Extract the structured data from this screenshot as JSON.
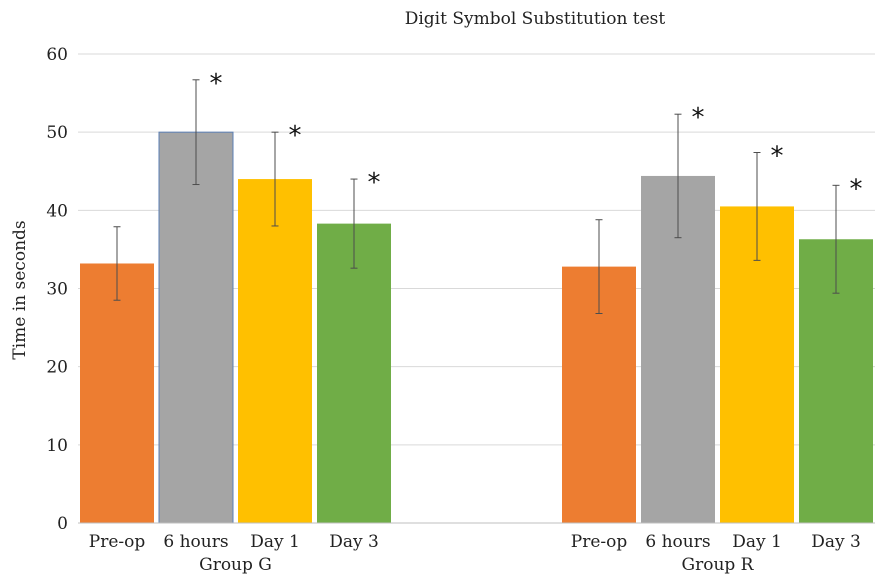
{
  "chart_data": {
    "type": "bar",
    "title": "Digit Symbol Substitution test",
    "ylabel": "Time in seconds",
    "xlabel": "",
    "ylim": [
      0,
      60
    ],
    "yticks": [
      0,
      10,
      20,
      30,
      40,
      50,
      60
    ],
    "grid": true,
    "legend": "none",
    "groups": [
      {
        "name": "Group G",
        "bars": [
          {
            "label": "Pre-op",
            "value": 33.2,
            "error": 4.7,
            "significant": false,
            "color": "#ED7D31"
          },
          {
            "label": "6 hours",
            "value": 50.0,
            "error": 6.7,
            "significant": true,
            "color": "#A5A5A5"
          },
          {
            "label": "Day 1",
            "value": 44.0,
            "error": 6.0,
            "significant": true,
            "color": "#FFC000"
          },
          {
            "label": "Day 3",
            "value": 38.3,
            "error": 5.7,
            "significant": true,
            "color": "#70AD47"
          }
        ]
      },
      {
        "name": "Group R",
        "bars": [
          {
            "label": "Pre-op",
            "value": 32.8,
            "error": 6.0,
            "significant": false,
            "color": "#ED7D31"
          },
          {
            "label": "6 hours",
            "value": 44.4,
            "error": 7.9,
            "significant": true,
            "color": "#A5A5A5"
          },
          {
            "label": "Day 1",
            "value": 40.5,
            "error": 6.9,
            "significant": true,
            "color": "#FFC000"
          },
          {
            "label": "Day 3",
            "value": 36.3,
            "error": 6.9,
            "significant": true,
            "color": "#70AD47"
          }
        ]
      }
    ],
    "significance_marker": "*"
  }
}
